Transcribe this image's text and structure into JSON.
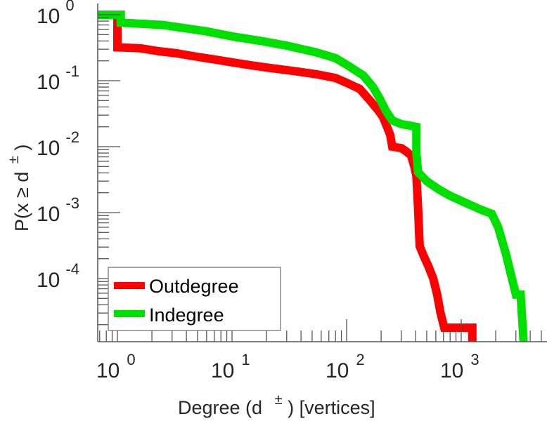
{
  "chart_data": {
    "type": "line",
    "title": "",
    "xlabel": "Degree (d ±) [vertices]",
    "xlabel_parts": {
      "main": "Degree (d",
      "sup": "±",
      "tail": ") [vertices]"
    },
    "ylabel": "P(x ≥ d±)",
    "ylabel_parts": {
      "main": "P(x ≥ d",
      "sup": "±",
      "tail": ")"
    },
    "xscale": "log",
    "yscale": "log",
    "xlim": [
      0.67,
      4500
    ],
    "ylim": [
      1.1e-05,
      1.4
    ],
    "grid": false,
    "legend_position": "bottom-left",
    "x_ticks": [
      {
        "base": "10",
        "exp": "0",
        "value": 1
      },
      {
        "base": "10",
        "exp": "1",
        "value": 10
      },
      {
        "base": "10",
        "exp": "2",
        "value": 100
      },
      {
        "base": "10",
        "exp": "3",
        "value": 1000
      }
    ],
    "y_ticks": [
      {
        "base": "10",
        "exp": "0",
        "value": 1
      },
      {
        "base": "10",
        "exp": "-1",
        "value": 0.1
      },
      {
        "base": "10",
        "exp": "-2",
        "value": 0.01
      },
      {
        "base": "10",
        "exp": "-3",
        "value": 0.001
      },
      {
        "base": "10",
        "exp": "-4",
        "value": 0.0001
      }
    ],
    "series": [
      {
        "name": "Outdegree",
        "color": "#ff0000",
        "points": [
          [
            0.67,
            1.0
          ],
          [
            1.0,
            1.0
          ],
          [
            1.0,
            0.32
          ],
          [
            1.6,
            0.31
          ],
          [
            2.3,
            0.28
          ],
          [
            3.3,
            0.26
          ],
          [
            5,
            0.23
          ],
          [
            7,
            0.21
          ],
          [
            10,
            0.19
          ],
          [
            15,
            0.17
          ],
          [
            22,
            0.155
          ],
          [
            35,
            0.14
          ],
          [
            55,
            0.125
          ],
          [
            80,
            0.11
          ],
          [
            100,
            0.093
          ],
          [
            130,
            0.075
          ],
          [
            160,
            0.05
          ],
          [
            190,
            0.035
          ],
          [
            208,
            0.028
          ],
          [
            225,
            0.02
          ],
          [
            240,
            0.015
          ],
          [
            250,
            0.01
          ],
          [
            300,
            0.0095
          ],
          [
            330,
            0.0085
          ],
          [
            366,
            0.0073
          ],
          [
            390,
            0.005
          ],
          [
            406,
            0.0036
          ],
          [
            420,
            0.0012
          ],
          [
            434,
            0.00031
          ],
          [
            470,
            0.00022
          ],
          [
            520,
            0.00015
          ],
          [
            570,
            0.0001
          ],
          [
            617,
            5.7e-05
          ],
          [
            660,
            3e-05
          ],
          [
            710,
            1.8e-05
          ],
          [
            1250,
            1.8e-05
          ],
          [
            1250,
            1.1e-05
          ]
        ]
      },
      {
        "name": "Indegree",
        "color": "#00e000",
        "points": [
          [
            0.67,
            1.0
          ],
          [
            1.07,
            1.0
          ],
          [
            1.07,
            0.76
          ],
          [
            2.5,
            0.7
          ],
          [
            4,
            0.62
          ],
          [
            6,
            0.56
          ],
          [
            10,
            0.47
          ],
          [
            18,
            0.4
          ],
          [
            30,
            0.34
          ],
          [
            54,
            0.27
          ],
          [
            80,
            0.22
          ],
          [
            100,
            0.175
          ],
          [
            140,
            0.12
          ],
          [
            170,
            0.08
          ],
          [
            194,
            0.054
          ],
          [
            220,
            0.035
          ],
          [
            250,
            0.025
          ],
          [
            300,
            0.022
          ],
          [
            406,
            0.02
          ],
          [
            406,
            0.008
          ],
          [
            420,
            0.0041
          ],
          [
            500,
            0.003
          ],
          [
            650,
            0.0022
          ],
          [
            800,
            0.0018
          ],
          [
            1100,
            0.0014
          ],
          [
            1500,
            0.0011
          ],
          [
            1850,
            0.00096
          ],
          [
            2100,
            0.0006
          ],
          [
            2450,
            0.00024
          ],
          [
            2700,
            0.00012
          ],
          [
            3000,
            5.7e-05
          ],
          [
            3300,
            5.7e-05
          ],
          [
            3500,
            1.1e-05
          ]
        ]
      }
    ]
  }
}
